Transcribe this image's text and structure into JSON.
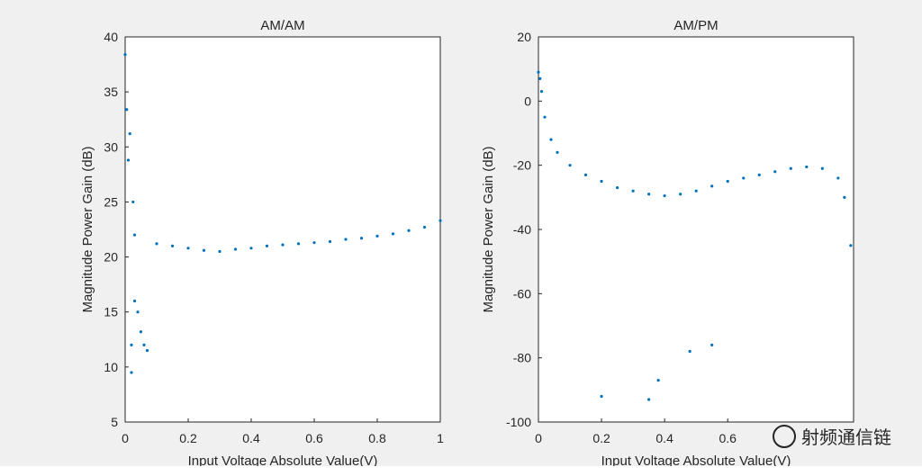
{
  "watermark": {
    "text": "射频通信链"
  },
  "chart_data": [
    {
      "type": "scatter",
      "title": "AM/AM",
      "xlabel": "Input Voltage Absolute Value(V)",
      "ylabel": "Magnitude Power Gain (dB)",
      "xlim": [
        0,
        1
      ],
      "ylim": [
        5,
        40
      ],
      "xticks": [
        0,
        0.2,
        0.4,
        0.6,
        0.8,
        1
      ],
      "yticks": [
        5,
        10,
        15,
        20,
        25,
        30,
        35,
        40
      ],
      "xtick_labels": [
        "0",
        "0.2",
        "0.4",
        "0.6",
        "0.8",
        "1"
      ],
      "ytick_labels": [
        "5",
        "10",
        "15",
        "20",
        "25",
        "30",
        "35",
        "40"
      ],
      "grid": false,
      "color": "#0072bd",
      "series": [
        {
          "x": [
            0.0,
            0.005,
            0.01,
            0.015,
            0.02,
            0.02,
            0.025,
            0.03,
            0.03,
            0.04,
            0.05,
            0.06,
            0.07,
            0.1,
            0.15,
            0.2,
            0.25,
            0.3,
            0.35,
            0.4,
            0.45,
            0.5,
            0.55,
            0.6,
            0.65,
            0.7,
            0.75,
            0.8,
            0.85,
            0.9,
            0.95,
            1.0
          ],
          "y": [
            38.4,
            33.4,
            28.8,
            31.2,
            12.0,
            9.5,
            25.0,
            22.0,
            16.0,
            15.0,
            13.2,
            12.0,
            11.5,
            21.2,
            21.0,
            20.8,
            20.6,
            20.5,
            20.7,
            20.8,
            21.0,
            21.1,
            21.2,
            21.3,
            21.4,
            21.6,
            21.7,
            21.9,
            22.1,
            22.4,
            22.7,
            23.3
          ]
        }
      ]
    },
    {
      "type": "scatter",
      "title": "AM/PM",
      "xlabel": "Input Voltage Absolute Value(V)",
      "ylabel": "Magnitude Power Gain (dB)",
      "xlim": [
        0,
        0.999
      ],
      "ylim": [
        -100,
        20
      ],
      "xticks": [
        0,
        0.2,
        0.4,
        0.6
      ],
      "yticks": [
        -100,
        -80,
        -60,
        -40,
        -20,
        0,
        20
      ],
      "xtick_labels": [
        "0",
        "0.2",
        "0.4",
        "0.6"
      ],
      "ytick_labels": [
        "-100",
        "-80",
        "-60",
        "-40",
        "-20",
        "0",
        "20"
      ],
      "grid": false,
      "color": "#0072bd",
      "series": [
        {
          "x": [
            0.0,
            0.005,
            0.01,
            0.02,
            0.04,
            0.06,
            0.1,
            0.15,
            0.2,
            0.25,
            0.3,
            0.35,
            0.4,
            0.45,
            0.5,
            0.55,
            0.6,
            0.65,
            0.7,
            0.75,
            0.8,
            0.85,
            0.9,
            0.95,
            0.97,
            0.99,
            0.2,
            0.35,
            0.38,
            0.48,
            0.55
          ],
          "y": [
            9.0,
            7.0,
            3.0,
            -5.0,
            -12.0,
            -16.0,
            -20.0,
            -23.0,
            -25.0,
            -27.0,
            -28.0,
            -29.0,
            -29.5,
            -29.0,
            -28.0,
            -26.5,
            -25.0,
            -24.0,
            -23.0,
            -22.0,
            -21.0,
            -20.5,
            -21.0,
            -24.0,
            -30.0,
            -45.0,
            -92.0,
            -93.0,
            -87.0,
            -78.0,
            -76.0
          ]
        }
      ]
    }
  ]
}
